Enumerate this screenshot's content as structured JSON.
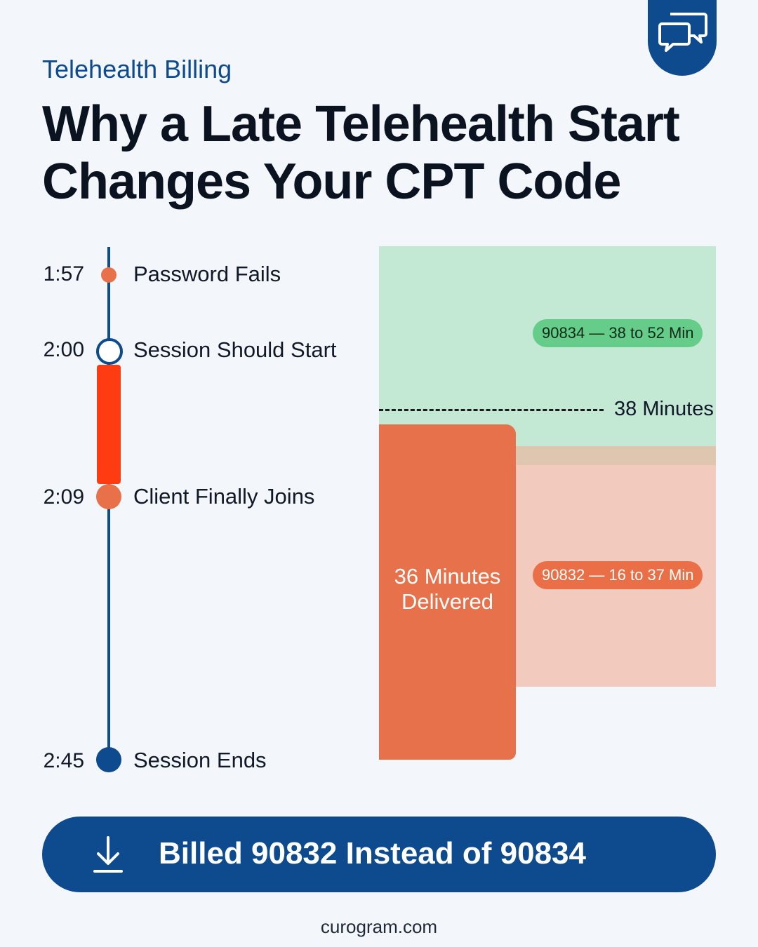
{
  "header": {
    "kicker": "Telehealth Billing",
    "headline_line1": "Why a Late Telehealth Start",
    "headline_line2": "Changes Your CPT Code",
    "brand_icon": "chat-bubbles-icon"
  },
  "timeline": {
    "events": [
      {
        "time": "1:57",
        "label": "Password Fails"
      },
      {
        "time": "2:00",
        "label": "Session Should Start"
      },
      {
        "time": "2:09",
        "label": "Client Finally Joins"
      },
      {
        "time": "2:45",
        "label": "Session Ends"
      }
    ]
  },
  "chart": {
    "delivered_line1": "36 Minutes",
    "delivered_line2": "Delivered",
    "delivered_minutes": 36,
    "threshold_label": "38 Minutes",
    "threshold_minutes": 38,
    "code_upper": "90834 — 38 to 52 Min",
    "code_lower": "90832 — 16 to 37 Min",
    "colors": {
      "upper_zone": "#c3e8d4",
      "lower_zone": "#f2cbbe",
      "delivered": "#e6714a",
      "late_gap": "#ff3b12",
      "brand": "#0d4a8e"
    }
  },
  "cta": {
    "label": "Billed 90832 Instead of 90834",
    "icon": "download-icon"
  },
  "footer": {
    "site": "curogram.com"
  }
}
